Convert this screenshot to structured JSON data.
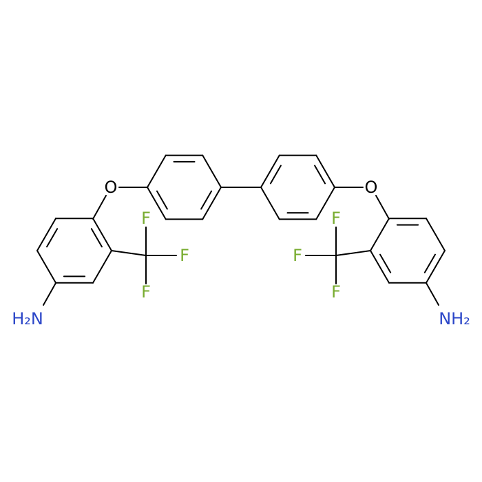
{
  "atoms": {
    "left_oxygen": "O",
    "right_oxygen": "O",
    "left_fluorines": [
      "F",
      "F",
      "F"
    ],
    "right_fluorines": [
      "F",
      "F",
      "F"
    ],
    "left_amine": "H₂N",
    "right_amine": "NH₂"
  }
}
